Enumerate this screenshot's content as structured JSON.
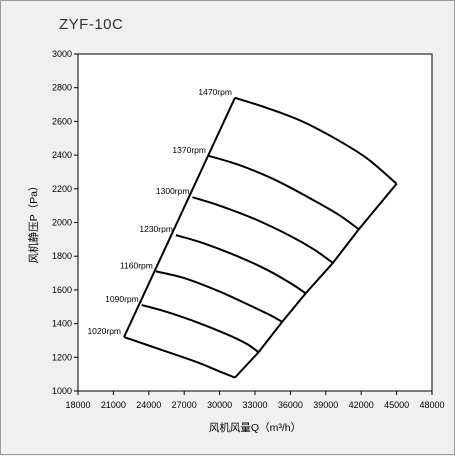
{
  "chart_data": {
    "type": "line",
    "title": "ZYF-10C",
    "xlabel": "风机风量Q（m³/h）",
    "ylabel": "风机静压P（Pa）",
    "xlim": [
      18000,
      48000
    ],
    "ylim": [
      1000,
      3000
    ],
    "xticks": [
      "18000",
      "21000",
      "24000",
      "27000",
      "30000",
      "33000",
      "36000",
      "39000",
      "42000",
      "45000",
      "48000"
    ],
    "yticks": [
      "1000",
      "1200",
      "1400",
      "1600",
      "1800",
      "2000",
      "2200",
      "2400",
      "2600",
      "2800",
      "3000"
    ],
    "grid": false,
    "series": [
      {
        "name": "1470rpm",
        "x": [
          31300,
          34000,
          37000,
          40000,
          42500,
          45000
        ],
        "y": [
          2740,
          2680,
          2600,
          2490,
          2380,
          2230
        ]
      },
      {
        "name": "1370rpm",
        "x": [
          29100,
          31500,
          34500,
          37500,
          40000,
          41800
        ],
        "y": [
          2395,
          2345,
          2260,
          2150,
          2050,
          1960
        ]
      },
      {
        "name": "1300rpm",
        "x": [
          27700,
          30000,
          33000,
          36000,
          38000,
          39600
        ],
        "y": [
          2150,
          2100,
          2020,
          1920,
          1840,
          1760
        ]
      },
      {
        "name": "1230rpm",
        "x": [
          26300,
          28500,
          31500,
          34000,
          36000,
          37300
        ],
        "y": [
          1925,
          1880,
          1800,
          1720,
          1640,
          1580
        ]
      },
      {
        "name": "1160rpm",
        "x": [
          24600,
          27000,
          30000,
          32500,
          34300,
          35300
        ],
        "y": [
          1710,
          1670,
          1590,
          1510,
          1450,
          1410
        ]
      },
      {
        "name": "1090rpm",
        "x": [
          23400,
          25500,
          28000,
          30500,
          32300,
          33300
        ],
        "y": [
          1510,
          1470,
          1410,
          1340,
          1280,
          1230
        ]
      },
      {
        "name": "1020rpm",
        "x": [
          21900,
          24000,
          26500,
          28500,
          30200,
          31300
        ],
        "y": [
          1320,
          1270,
          1210,
          1160,
          1110,
          1080
        ]
      }
    ],
    "envelope": {
      "left": {
        "x": [
          21900,
          31300
        ],
        "y": [
          1320,
          2740
        ]
      },
      "right": {
        "x": [
          45000,
          41800,
          39600,
          37300,
          35300,
          33300,
          31300
        ],
        "y": [
          2230,
          1960,
          1760,
          1580,
          1410,
          1230,
          1080
        ]
      }
    }
  }
}
